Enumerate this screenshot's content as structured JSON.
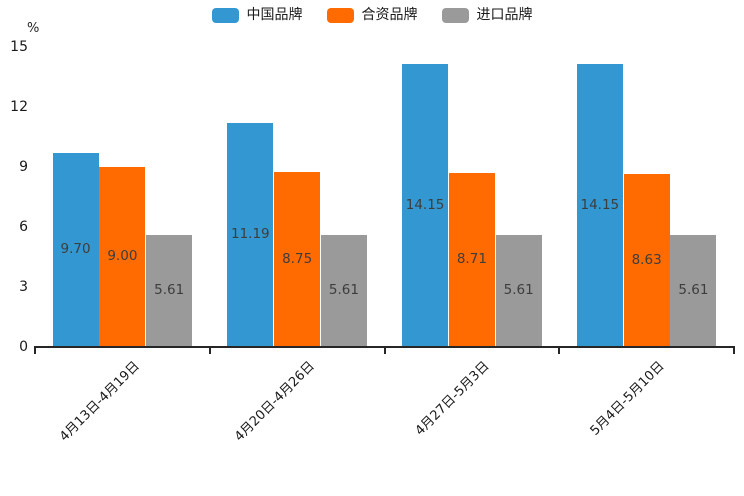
{
  "unit_label": "%",
  "chart_data": {
    "type": "bar",
    "title": "",
    "xlabel": "",
    "ylabel": "%",
    "categories": [
      "4月13日-4月19日",
      "4月20日-4月26日",
      "4月27日-5月3日",
      "5月4日-5月10日"
    ],
    "series": [
      {
        "name": "中国品牌",
        "color": "#3398d1",
        "values": [
          9.7,
          11.19,
          14.15,
          14.15
        ],
        "value_labels": [
          "9.70",
          "11.19",
          "14.15",
          "14.15"
        ]
      },
      {
        "name": "合资品牌",
        "color": "#ff6b00",
        "values": [
          9.0,
          8.75,
          8.71,
          8.63
        ],
        "value_labels": [
          "9.00",
          "8.75",
          "8.71",
          "8.63"
        ]
      },
      {
        "name": "进口品牌",
        "color": "#9a9a9a",
        "values": [
          5.61,
          5.61,
          5.61,
          5.61
        ],
        "value_labels": [
          "5.61",
          "5.61",
          "5.61",
          "5.61"
        ]
      }
    ],
    "ylim": [
      0,
      15
    ],
    "yticks": [
      0,
      3,
      6,
      9,
      12,
      15
    ],
    "grid": false,
    "legend_position": "top",
    "background": "#ffffff",
    "axis_color": "#262626"
  }
}
